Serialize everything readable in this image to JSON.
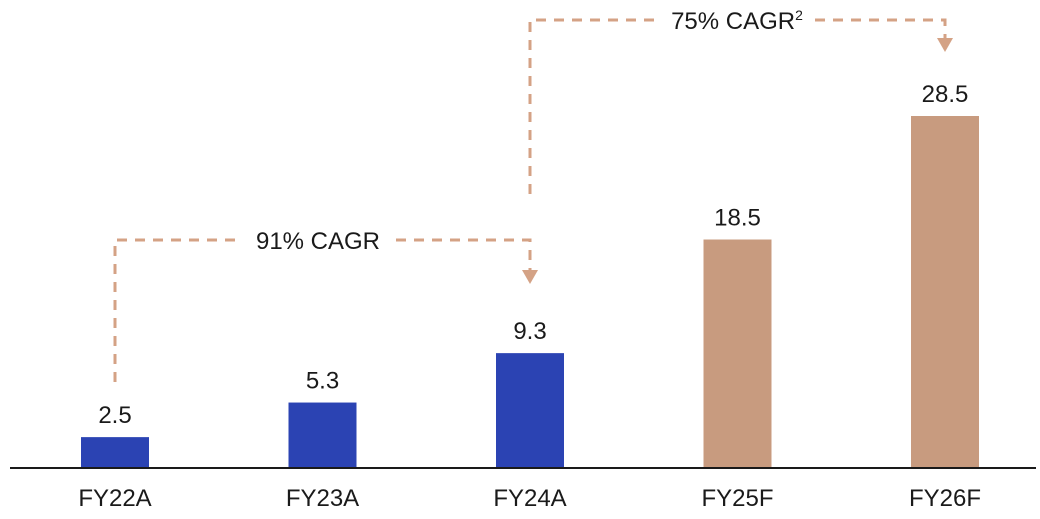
{
  "chart_data": {
    "type": "bar",
    "title": "",
    "xlabel": "",
    "ylabel": "",
    "categories": [
      "FY22A",
      "FY23A",
      "FY24A",
      "FY25F",
      "FY26F"
    ],
    "values": [
      2.5,
      5.3,
      9.3,
      18.5,
      28.5
    ],
    "value_labels": [
      "2.5",
      "5.3",
      "9.3",
      "18.5",
      "28.5"
    ],
    "bar_kinds": [
      "actual",
      "actual",
      "actual",
      "forecast",
      "forecast"
    ],
    "ylim": [
      0,
      28.5
    ],
    "grid": false,
    "annotations": [
      {
        "id": "cagr-91",
        "text": "91% CAGR",
        "superscript": "",
        "from": "FY22A",
        "to": "FY24A"
      },
      {
        "id": "cagr-75",
        "text": "75% CAGR",
        "superscript": "2",
        "from": "FY24A",
        "to": "FY26F"
      }
    ]
  },
  "colors": {
    "actual": "#2b43b3",
    "forecast": "#c89b7f",
    "connector": "#d4a285",
    "axis": "#1a1a1a"
  }
}
